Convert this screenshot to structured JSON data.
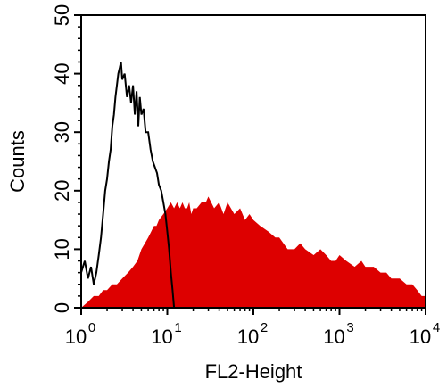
{
  "chart_data": {
    "type": "area",
    "xlabel": "FL2-Height",
    "ylabel": "Counts",
    "x_scale": "log",
    "xlim": [
      1,
      10000
    ],
    "ylim": [
      0,
      50
    ],
    "x_ticks": [
      {
        "base": "10",
        "exp": "0",
        "value": 1
      },
      {
        "base": "10",
        "exp": "1",
        "value": 10
      },
      {
        "base": "10",
        "exp": "2",
        "value": 100
      },
      {
        "base": "10",
        "exp": "3",
        "value": 1000
      },
      {
        "base": "10",
        "exp": "4",
        "value": 10000
      }
    ],
    "y_ticks": [
      "0",
      "10",
      "20",
      "30",
      "40",
      "50"
    ],
    "grid": false,
    "legend": "none",
    "series": [
      {
        "style": "line",
        "color": "#000000",
        "x": [
          1.0,
          1.1,
          1.2,
          1.3,
          1.4,
          1.5,
          1.6,
          1.7,
          1.8,
          1.9,
          2.0,
          2.1,
          2.2,
          2.3,
          2.4,
          2.5,
          2.6,
          2.7,
          2.8,
          2.9,
          3.0,
          3.2,
          3.4,
          3.6,
          3.8,
          4.0,
          4.2,
          4.4,
          4.6,
          4.8,
          5.0,
          5.3,
          5.6,
          6.0,
          6.4,
          6.8,
          7.2,
          7.6,
          8.0,
          8.5,
          9.0,
          9.5,
          10.0,
          10.5,
          11.0,
          11.5,
          12.0
        ],
        "y": [
          6,
          8,
          5,
          7,
          4,
          6,
          9,
          12,
          16,
          20,
          22,
          25,
          27,
          31,
          33,
          36,
          38,
          40,
          41,
          42,
          39,
          40,
          36,
          38,
          35,
          38,
          33,
          37,
          31,
          36,
          33,
          34,
          30,
          30,
          27,
          25,
          24,
          23,
          21,
          20,
          18,
          16,
          13,
          10,
          6,
          3,
          0
        ]
      },
      {
        "style": "filled",
        "color": "#dd0000",
        "x": [
          1.0,
          1.2,
          1.4,
          1.6,
          1.8,
          2.0,
          2.3,
          2.6,
          3.0,
          3.5,
          4.0,
          4.5,
          5.0,
          5.5,
          6.0,
          6.5,
          7.0,
          7.5,
          8.0,
          9.0,
          10.0,
          11.0,
          12.0,
          13.0,
          14.0,
          15.0,
          16.0,
          17.0,
          18.0,
          19.0,
          20.0,
          22.0,
          25.0,
          28.0,
          30.0,
          35.0,
          40.0,
          45.0,
          50.0,
          60.0,
          70.0,
          80.0,
          90.0,
          100.0,
          120.0,
          150.0,
          180.0,
          200.0,
          250.0,
          300.0,
          350.0,
          400.0,
          500.0,
          600.0,
          700.0,
          800.0,
          900.0,
          1000.0,
          1200.0,
          1500.0,
          1800.0,
          2000.0,
          2500.0,
          3000.0,
          3500.0,
          4000.0,
          5000.0,
          6000.0,
          7000.0,
          8000.0,
          9000.0,
          10000.0
        ],
        "y": [
          0,
          1,
          2,
          2,
          3,
          3,
          4,
          4,
          5,
          6,
          7,
          8,
          10,
          11,
          12,
          13,
          14,
          14,
          15,
          16,
          17,
          18,
          17,
          18,
          17,
          18,
          17,
          17,
          18,
          16,
          17,
          17,
          18,
          18,
          19,
          17,
          18,
          16,
          18,
          16,
          17,
          15,
          16,
          15,
          14,
          13,
          12,
          12,
          10,
          10,
          11,
          10,
          9,
          10,
          9,
          8,
          8,
          9,
          8,
          7,
          8,
          7,
          7,
          6,
          6,
          5,
          5,
          4,
          4,
          3,
          2,
          2
        ]
      }
    ]
  }
}
